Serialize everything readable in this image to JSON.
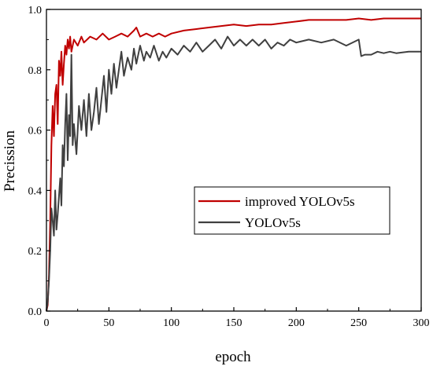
{
  "chart_data": {
    "type": "line",
    "title": "",
    "xlabel": "epoch",
    "ylabel": "Precission",
    "xlim": [
      0,
      300
    ],
    "ylim": [
      0.0,
      1.0
    ],
    "xticks": [
      "0",
      "50",
      "100",
      "150",
      "200",
      "250",
      "300"
    ],
    "yticks": [
      "0.0",
      "0.2",
      "0.4",
      "0.6",
      "0.8",
      "1.0"
    ],
    "grid": false,
    "legend_position": "center-right",
    "series": [
      {
        "name": "improved YOLOv5s",
        "color": "#c00000",
        "points": [
          [
            0,
            0.0
          ],
          [
            1,
            0.02
          ],
          [
            2,
            0.12
          ],
          [
            3,
            0.3
          ],
          [
            4,
            0.55
          ],
          [
            5,
            0.68
          ],
          [
            6,
            0.58
          ],
          [
            7,
            0.72
          ],
          [
            8,
            0.75
          ],
          [
            9,
            0.62
          ],
          [
            10,
            0.83
          ],
          [
            11,
            0.78
          ],
          [
            12,
            0.86
          ],
          [
            13,
            0.75
          ],
          [
            14,
            0.82
          ],
          [
            15,
            0.88
          ],
          [
            16,
            0.85
          ],
          [
            17,
            0.9
          ],
          [
            18,
            0.87
          ],
          [
            19,
            0.91
          ],
          [
            20,
            0.86
          ],
          [
            22,
            0.9
          ],
          [
            25,
            0.88
          ],
          [
            28,
            0.91
          ],
          [
            30,
            0.89
          ],
          [
            35,
            0.91
          ],
          [
            40,
            0.9
          ],
          [
            45,
            0.92
          ],
          [
            50,
            0.9
          ],
          [
            55,
            0.91
          ],
          [
            60,
            0.92
          ],
          [
            65,
            0.91
          ],
          [
            70,
            0.93
          ],
          [
            72,
            0.94
          ],
          [
            75,
            0.91
          ],
          [
            80,
            0.92
          ],
          [
            85,
            0.91
          ],
          [
            90,
            0.92
          ],
          [
            95,
            0.91
          ],
          [
            100,
            0.92
          ],
          [
            110,
            0.93
          ],
          [
            120,
            0.935
          ],
          [
            130,
            0.94
          ],
          [
            140,
            0.945
          ],
          [
            150,
            0.95
          ],
          [
            160,
            0.945
          ],
          [
            170,
            0.95
          ],
          [
            180,
            0.95
          ],
          [
            190,
            0.955
          ],
          [
            200,
            0.96
          ],
          [
            210,
            0.965
          ],
          [
            220,
            0.965
          ],
          [
            230,
            0.965
          ],
          [
            240,
            0.965
          ],
          [
            250,
            0.97
          ],
          [
            260,
            0.965
          ],
          [
            270,
            0.97
          ],
          [
            280,
            0.97
          ],
          [
            290,
            0.97
          ],
          [
            300,
            0.97
          ]
        ]
      },
      {
        "name": "YOLOv5s",
        "color": "#404040",
        "points": [
          [
            0,
            0.0
          ],
          [
            1,
            0.03
          ],
          [
            2,
            0.1
          ],
          [
            3,
            0.2
          ],
          [
            4,
            0.34
          ],
          [
            5,
            0.3
          ],
          [
            6,
            0.25
          ],
          [
            7,
            0.4
          ],
          [
            8,
            0.27
          ],
          [
            9,
            0.32
          ],
          [
            10,
            0.38
          ],
          [
            11,
            0.44
          ],
          [
            12,
            0.35
          ],
          [
            13,
            0.55
          ],
          [
            14,
            0.48
          ],
          [
            15,
            0.62
          ],
          [
            16,
            0.72
          ],
          [
            17,
            0.5
          ],
          [
            18,
            0.65
          ],
          [
            19,
            0.58
          ],
          [
            20,
            0.85
          ],
          [
            21,
            0.55
          ],
          [
            22,
            0.62
          ],
          [
            24,
            0.52
          ],
          [
            26,
            0.68
          ],
          [
            28,
            0.6
          ],
          [
            30,
            0.7
          ],
          [
            32,
            0.58
          ],
          [
            34,
            0.72
          ],
          [
            36,
            0.6
          ],
          [
            38,
            0.66
          ],
          [
            40,
            0.74
          ],
          [
            42,
            0.62
          ],
          [
            44,
            0.7
          ],
          [
            46,
            0.78
          ],
          [
            48,
            0.66
          ],
          [
            50,
            0.8
          ],
          [
            52,
            0.72
          ],
          [
            54,
            0.82
          ],
          [
            56,
            0.74
          ],
          [
            58,
            0.8
          ],
          [
            60,
            0.86
          ],
          [
            62,
            0.78
          ],
          [
            65,
            0.84
          ],
          [
            68,
            0.8
          ],
          [
            70,
            0.87
          ],
          [
            72,
            0.82
          ],
          [
            75,
            0.88
          ],
          [
            78,
            0.83
          ],
          [
            80,
            0.86
          ],
          [
            83,
            0.84
          ],
          [
            86,
            0.88
          ],
          [
            90,
            0.83
          ],
          [
            93,
            0.86
          ],
          [
            96,
            0.84
          ],
          [
            100,
            0.87
          ],
          [
            105,
            0.85
          ],
          [
            110,
            0.88
          ],
          [
            115,
            0.86
          ],
          [
            120,
            0.89
          ],
          [
            125,
            0.86
          ],
          [
            130,
            0.88
          ],
          [
            135,
            0.9
          ],
          [
            140,
            0.87
          ],
          [
            145,
            0.91
          ],
          [
            150,
            0.88
          ],
          [
            155,
            0.9
          ],
          [
            160,
            0.88
          ],
          [
            165,
            0.9
          ],
          [
            170,
            0.88
          ],
          [
            175,
            0.9
          ],
          [
            180,
            0.87
          ],
          [
            185,
            0.89
          ],
          [
            190,
            0.88
          ],
          [
            195,
            0.9
          ],
          [
            200,
            0.89
          ],
          [
            210,
            0.9
          ],
          [
            220,
            0.89
          ],
          [
            230,
            0.9
          ],
          [
            240,
            0.88
          ],
          [
            250,
            0.9
          ],
          [
            252,
            0.845
          ],
          [
            255,
            0.85
          ],
          [
            260,
            0.85
          ],
          [
            265,
            0.86
          ],
          [
            270,
            0.855
          ],
          [
            275,
            0.86
          ],
          [
            280,
            0.855
          ],
          [
            290,
            0.86
          ],
          [
            300,
            0.86
          ]
        ]
      }
    ]
  }
}
